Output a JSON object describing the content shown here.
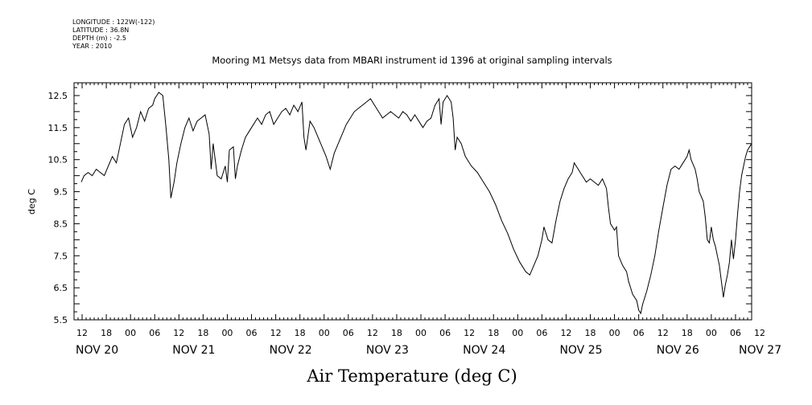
{
  "header": {
    "longitude": "LONGITUDE : 122W(-122)",
    "latitude": "LATITUDE : 36.8N",
    "depth": "DEPTH (m) : -2.5",
    "year": "YEAR : 2010"
  },
  "chart_data": {
    "type": "line",
    "title": "Mooring M1 Metsys data from MBARI instrument id 1396 at original sampling intervals",
    "xlabel": "Air Temperature (deg C)",
    "ylabel": "deg C",
    "ylim": [
      5.5,
      12.9
    ],
    "xlim_hours": [
      -2,
      166
    ],
    "y_ticks": [
      5.5,
      6.5,
      7.5,
      8.5,
      9.5,
      10.5,
      11.5,
      12.5
    ],
    "y_tick_labels": [
      "5.5",
      "6.5",
      "7.5",
      "8.5",
      "9.5",
      "10.5",
      "11.5",
      "12.5"
    ],
    "x_hour_labels": [
      "12",
      "18",
      "00",
      "06",
      "12",
      "18",
      "00",
      "06",
      "12",
      "18",
      "00",
      "06",
      "12",
      "18",
      "00",
      "06",
      "12",
      "18",
      "00",
      "06",
      "12",
      "18",
      "00",
      "06",
      "12",
      "18",
      "00",
      "06",
      "12"
    ],
    "x_day_labels": [
      "NOV 20",
      "NOV 21",
      "NOV 22",
      "NOV 23",
      "NOV 24",
      "NOV 25",
      "NOV 26",
      "NOV 27"
    ],
    "grid": false,
    "series": [
      {
        "name": "",
        "x_unit": "hours since NOV 20 12:00",
        "points": [
          [
            -0.2,
            9.8
          ],
          [
            0.5,
            10.0
          ],
          [
            1.5,
            10.1
          ],
          [
            2.5,
            10.0
          ],
          [
            3.5,
            10.2
          ],
          [
            4.5,
            10.1
          ],
          [
            5.5,
            10.0
          ],
          [
            6.5,
            10.3
          ],
          [
            7.5,
            10.6
          ],
          [
            8.5,
            10.4
          ],
          [
            9.5,
            11.0
          ],
          [
            10.5,
            11.6
          ],
          [
            11.5,
            11.8
          ],
          [
            12.5,
            11.2
          ],
          [
            13.5,
            11.5
          ],
          [
            14.5,
            12.0
          ],
          [
            15.5,
            11.7
          ],
          [
            16.5,
            12.1
          ],
          [
            17.5,
            12.2
          ],
          [
            18.0,
            12.4
          ],
          [
            19.0,
            12.6
          ],
          [
            20.0,
            12.5
          ],
          [
            20.8,
            11.5
          ],
          [
            21.5,
            10.5
          ],
          [
            22.0,
            9.3
          ],
          [
            22.8,
            9.8
          ],
          [
            23.5,
            10.4
          ],
          [
            24.5,
            11.0
          ],
          [
            25.5,
            11.5
          ],
          [
            26.5,
            11.8
          ],
          [
            27.5,
            11.4
          ],
          [
            28.5,
            11.7
          ],
          [
            29.5,
            11.8
          ],
          [
            30.5,
            11.9
          ],
          [
            31.5,
            11.3
          ],
          [
            32.0,
            10.2
          ],
          [
            32.5,
            11.0
          ],
          [
            33.5,
            10.0
          ],
          [
            34.5,
            9.9
          ],
          [
            35.5,
            10.3
          ],
          [
            36.0,
            9.8
          ],
          [
            36.5,
            10.8
          ],
          [
            37.5,
            10.9
          ],
          [
            38.0,
            9.9
          ],
          [
            38.5,
            10.3
          ],
          [
            39.5,
            10.8
          ],
          [
            40.5,
            11.2
          ],
          [
            41.5,
            11.4
          ],
          [
            42.5,
            11.6
          ],
          [
            43.5,
            11.8
          ],
          [
            44.5,
            11.6
          ],
          [
            45.5,
            11.9
          ],
          [
            46.5,
            12.0
          ],
          [
            47.5,
            11.6
          ],
          [
            48.5,
            11.8
          ],
          [
            49.5,
            12.0
          ],
          [
            50.5,
            12.1
          ],
          [
            51.5,
            11.9
          ],
          [
            52.5,
            12.2
          ],
          [
            53.5,
            12.0
          ],
          [
            54.5,
            12.3
          ],
          [
            55.0,
            11.2
          ],
          [
            55.5,
            10.8
          ],
          [
            56.5,
            11.7
          ],
          [
            57.5,
            11.5
          ],
          [
            58.5,
            11.2
          ],
          [
            59.5,
            10.9
          ],
          [
            60.5,
            10.6
          ],
          [
            61.5,
            10.2
          ],
          [
            62.5,
            10.7
          ],
          [
            63.5,
            11.0
          ],
          [
            64.5,
            11.3
          ],
          [
            65.5,
            11.6
          ],
          [
            66.5,
            11.8
          ],
          [
            67.5,
            12.0
          ],
          [
            68.5,
            12.1
          ],
          [
            69.5,
            12.2
          ],
          [
            70.5,
            12.3
          ],
          [
            71.5,
            12.4
          ],
          [
            72.5,
            12.2
          ],
          [
            73.5,
            12.0
          ],
          [
            74.5,
            11.8
          ],
          [
            75.5,
            11.9
          ],
          [
            76.5,
            12.0
          ],
          [
            77.5,
            11.9
          ],
          [
            78.5,
            11.8
          ],
          [
            79.5,
            12.0
          ],
          [
            80.5,
            11.9
          ],
          [
            81.5,
            11.7
          ],
          [
            82.5,
            11.9
          ],
          [
            83.5,
            11.7
          ],
          [
            84.5,
            11.5
          ],
          [
            85.5,
            11.7
          ],
          [
            86.5,
            11.8
          ],
          [
            87.5,
            12.2
          ],
          [
            88.5,
            12.4
          ],
          [
            89.0,
            11.6
          ],
          [
            89.5,
            12.3
          ],
          [
            90.5,
            12.5
          ],
          [
            91.5,
            12.3
          ],
          [
            92.0,
            11.8
          ],
          [
            92.5,
            10.8
          ],
          [
            93.0,
            11.2
          ],
          [
            94.0,
            11.0
          ],
          [
            95.0,
            10.6
          ],
          [
            96.5,
            10.3
          ],
          [
            98.0,
            10.1
          ],
          [
            99.5,
            9.8
          ],
          [
            101.0,
            9.5
          ],
          [
            102.5,
            9.1
          ],
          [
            104.0,
            8.6
          ],
          [
            105.5,
            8.2
          ],
          [
            107.0,
            7.7
          ],
          [
            108.5,
            7.3
          ],
          [
            110.0,
            7.0
          ],
          [
            111.0,
            6.9
          ],
          [
            112.0,
            7.2
          ],
          [
            113.0,
            7.5
          ],
          [
            114.0,
            8.0
          ],
          [
            114.5,
            8.4
          ],
          [
            115.5,
            8.0
          ],
          [
            116.5,
            7.9
          ],
          [
            117.5,
            8.6
          ],
          [
            118.5,
            9.2
          ],
          [
            119.5,
            9.6
          ],
          [
            120.5,
            9.9
          ],
          [
            121.5,
            10.1
          ],
          [
            122.0,
            10.4
          ],
          [
            123.0,
            10.2
          ],
          [
            124.0,
            10.0
          ],
          [
            125.0,
            9.8
          ],
          [
            126.0,
            9.9
          ],
          [
            127.0,
            9.8
          ],
          [
            128.0,
            9.7
          ],
          [
            129.0,
            9.9
          ],
          [
            130.0,
            9.6
          ],
          [
            130.5,
            9.0
          ],
          [
            131.0,
            8.5
          ],
          [
            132.0,
            8.3
          ],
          [
            132.5,
            8.4
          ],
          [
            133.0,
            7.5
          ],
          [
            134.0,
            7.2
          ],
          [
            135.0,
            7.0
          ],
          [
            135.5,
            6.7
          ],
          [
            136.5,
            6.3
          ],
          [
            137.5,
            6.1
          ],
          [
            138.0,
            5.8
          ],
          [
            138.5,
            5.7
          ],
          [
            139.0,
            6.0
          ],
          [
            140.0,
            6.4
          ],
          [
            141.0,
            6.9
          ],
          [
            142.0,
            7.5
          ],
          [
            143.0,
            8.3
          ],
          [
            144.0,
            9.0
          ],
          [
            145.0,
            9.7
          ],
          [
            146.0,
            10.2
          ],
          [
            147.0,
            10.3
          ],
          [
            148.0,
            10.2
          ],
          [
            149.0,
            10.4
          ],
          [
            150.0,
            10.6
          ],
          [
            150.5,
            10.8
          ],
          [
            151.0,
            10.5
          ],
          [
            152.0,
            10.2
          ],
          [
            152.5,
            9.9
          ],
          [
            153.0,
            9.5
          ],
          [
            154.0,
            9.2
          ],
          [
            154.5,
            8.7
          ],
          [
            155.0,
            8.0
          ],
          [
            155.5,
            7.9
          ],
          [
            156.0,
            8.4
          ],
          [
            156.5,
            8.0
          ],
          [
            157.0,
            7.8
          ],
          [
            157.5,
            7.5
          ],
          [
            158.0,
            7.2
          ],
          [
            158.5,
            6.7
          ],
          [
            159.0,
            6.2
          ],
          [
            159.5,
            6.6
          ],
          [
            160.0,
            6.9
          ],
          [
            160.5,
            7.3
          ],
          [
            161.0,
            8.0
          ],
          [
            161.5,
            7.4
          ],
          [
            162.0,
            8.0
          ],
          [
            162.5,
            8.8
          ],
          [
            163.0,
            9.5
          ],
          [
            163.5,
            10.0
          ],
          [
            164.0,
            10.3
          ],
          [
            164.5,
            10.6
          ],
          [
            165.0,
            10.8
          ],
          [
            165.5,
            10.9
          ],
          [
            166.0,
            11.0
          ]
        ]
      }
    ]
  }
}
